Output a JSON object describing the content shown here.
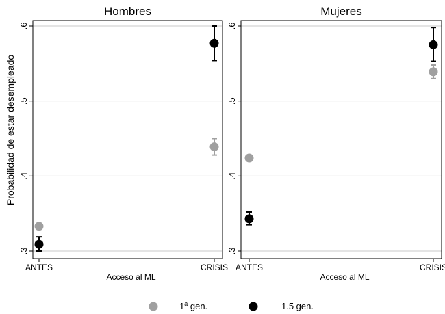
{
  "chart_data": {
    "type": "scatter",
    "ylabel": "Probabilidad de estar desempleado",
    "xlabel": "Acceso al ML",
    "categories": [
      "ANTES",
      "CRISIS"
    ],
    "ylim": [
      0.3,
      0.6
    ],
    "yticks": [
      0.3,
      0.4,
      0.5,
      0.6
    ],
    "ytick_labels": [
      ".3",
      ".4",
      ".5",
      ".6"
    ],
    "grid": true,
    "legend_position": "bottom",
    "panels": [
      {
        "title": "Hombres",
        "series": [
          {
            "name": "1ª gen.",
            "color": "#a0a0a0",
            "values": [
              0.333,
              0.439
            ],
            "ci_low": [
              null,
              0.428
            ],
            "ci_high": [
              null,
              0.45
            ]
          },
          {
            "name": "1.5 gen.",
            "color": "#000000",
            "values": [
              0.309,
              0.577
            ],
            "ci_low": [
              0.3,
              0.554
            ],
            "ci_high": [
              0.319,
              0.6
            ]
          }
        ]
      },
      {
        "title": "Mujeres",
        "series": [
          {
            "name": "1ª gen.",
            "color": "#a0a0a0",
            "values": [
              0.424,
              0.539
            ],
            "ci_low": [
              null,
              0.53
            ],
            "ci_high": [
              null,
              0.548
            ]
          },
          {
            "name": "1.5 gen.",
            "color": "#000000",
            "values": [
              0.343,
              0.575
            ],
            "ci_low": [
              0.335,
              0.553
            ],
            "ci_high": [
              0.352,
              0.598
            ]
          }
        ]
      }
    ],
    "legend": [
      {
        "base": "1",
        "sup": "a",
        "rest": " gen.",
        "color": "#a0a0a0"
      },
      {
        "base": "1.5 gen.",
        "sup": "",
        "rest": "",
        "color": "#000000"
      }
    ]
  }
}
